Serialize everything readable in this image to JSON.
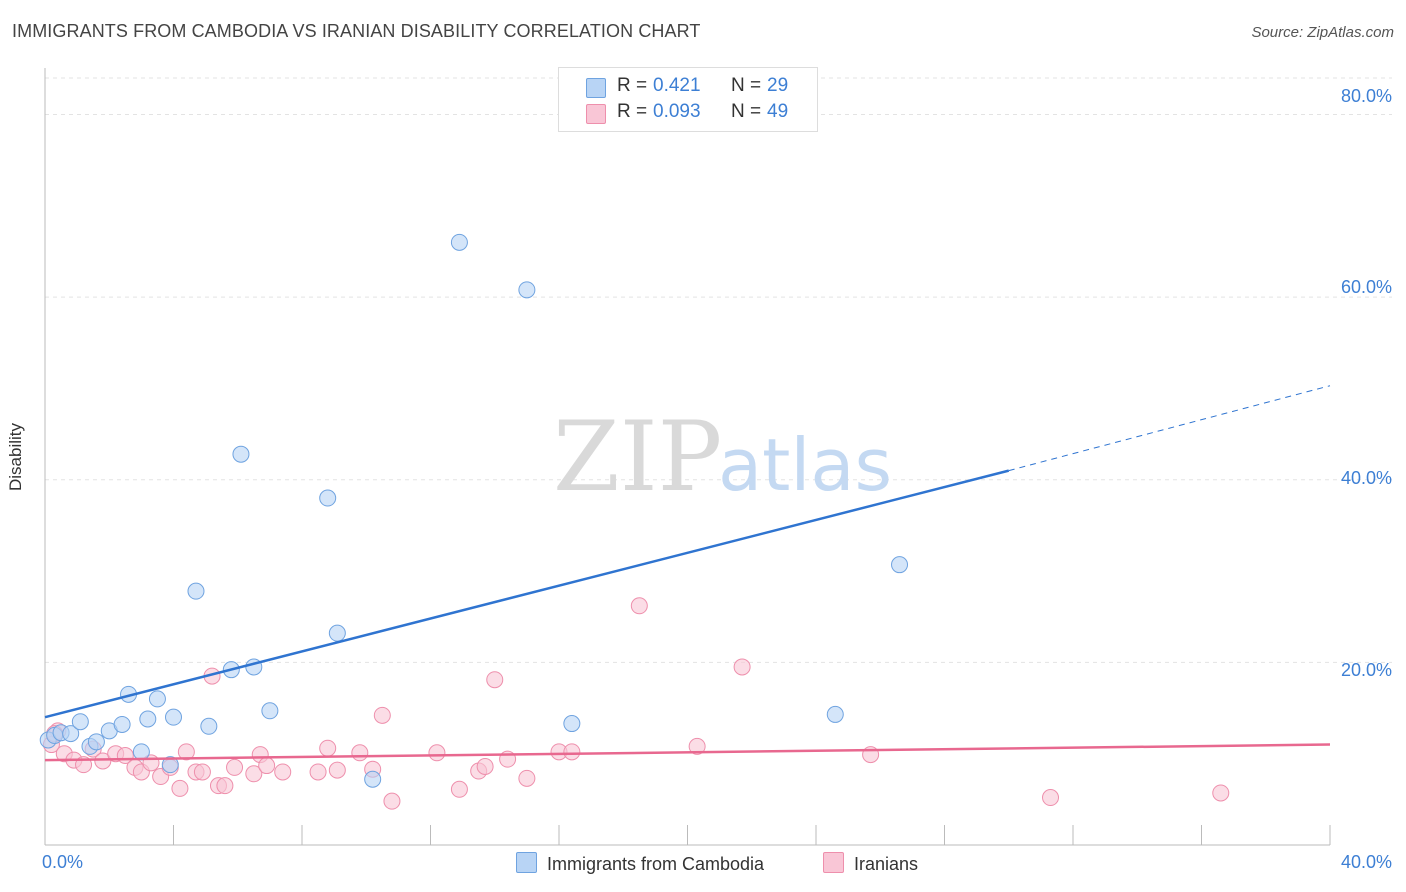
{
  "header": {
    "title": "IMMIGRANTS FROM CAMBODIA VS IRANIAN DISABILITY CORRELATION CHART",
    "source": "Source: ZipAtlas.com"
  },
  "watermark": {
    "zip": "ZIP",
    "atlas": "atlas"
  },
  "legend_top": {
    "rows": [
      {
        "r_label": "R =",
        "r_value": "0.421",
        "n_label": "N =",
        "n_value": "29"
      },
      {
        "r_label": "R =",
        "r_value": "0.093",
        "n_label": "N =",
        "n_value": "49"
      }
    ]
  },
  "colors": {
    "series1_fill": "#b8d4f5",
    "series1_stroke": "#6fa3e0",
    "series1_line": "#2f74d0",
    "series2_fill": "#f9c6d6",
    "series2_stroke": "#ee8fac",
    "series2_line": "#e8688f",
    "tick_text": "#3d7fd4",
    "grid": "#e3e3e3"
  },
  "chart_data": {
    "type": "scatter",
    "title": "IMMIGRANTS FROM CAMBODIA VS IRANIAN DISABILITY CORRELATION CHART",
    "xlabel": "",
    "ylabel": "Disability",
    "xlim": [
      0,
      40
    ],
    "ylim": [
      0,
      84
    ],
    "x_tick_labels": [
      "0.0%",
      "40.0%"
    ],
    "y_ticks": [
      20,
      40,
      60,
      80
    ],
    "y_tick_labels": [
      "20.0%",
      "40.0%",
      "60.0%",
      "80.0%"
    ],
    "grid": true,
    "legend_position": "bottom",
    "series": [
      {
        "name": "Immigrants from Cambodia",
        "r": 0.421,
        "n": 29,
        "trend": {
          "x_start": 0,
          "y_start": 14.0,
          "x_solid_end": 30.0,
          "y_solid_end": 41.0,
          "x_end": 40,
          "y_end": 50.3
        },
        "points": [
          [
            0.1,
            11.5
          ],
          [
            0.3,
            12.0
          ],
          [
            0.5,
            12.3
          ],
          [
            0.8,
            12.2
          ],
          [
            1.1,
            13.5
          ],
          [
            1.4,
            10.8
          ],
          [
            1.6,
            11.3
          ],
          [
            2.0,
            12.5
          ],
          [
            2.4,
            13.2
          ],
          [
            2.6,
            16.5
          ],
          [
            3.0,
            10.2
          ],
          [
            3.2,
            13.8
          ],
          [
            3.5,
            16.0
          ],
          [
            3.9,
            8.8
          ],
          [
            4.0,
            14.0
          ],
          [
            4.7,
            27.8
          ],
          [
            5.1,
            13.0
          ],
          [
            5.8,
            19.2
          ],
          [
            6.1,
            42.8
          ],
          [
            6.5,
            19.5
          ],
          [
            7.0,
            14.7
          ],
          [
            8.8,
            38.0
          ],
          [
            9.1,
            23.2
          ],
          [
            10.2,
            7.2
          ],
          [
            12.9,
            66.0
          ],
          [
            15.0,
            60.8
          ],
          [
            16.4,
            13.3
          ],
          [
            24.6,
            14.3
          ],
          [
            26.6,
            30.7
          ]
        ]
      },
      {
        "name": "Iranians",
        "r": 0.093,
        "n": 49,
        "trend": {
          "x_start": 0,
          "y_start": 9.3,
          "x_end": 40,
          "y_end": 11.0
        },
        "points": [
          [
            0.2,
            11.0
          ],
          [
            0.4,
            12.5
          ],
          [
            0.6,
            10.0
          ],
          [
            0.9,
            9.3
          ],
          [
            1.2,
            8.8
          ],
          [
            1.5,
            10.5
          ],
          [
            1.8,
            9.2
          ],
          [
            2.2,
            10.0
          ],
          [
            2.5,
            9.8
          ],
          [
            2.8,
            8.5
          ],
          [
            3.0,
            8.0
          ],
          [
            3.3,
            9.0
          ],
          [
            3.6,
            7.5
          ],
          [
            3.9,
            8.5
          ],
          [
            4.2,
            6.2
          ],
          [
            4.4,
            10.2
          ],
          [
            4.7,
            8.0
          ],
          [
            4.9,
            8.0
          ],
          [
            5.2,
            18.5
          ],
          [
            5.4,
            6.5
          ],
          [
            5.6,
            6.5
          ],
          [
            5.9,
            8.5
          ],
          [
            6.5,
            7.8
          ],
          [
            6.7,
            9.9
          ],
          [
            6.9,
            8.7
          ],
          [
            7.4,
            8.0
          ],
          [
            8.5,
            8.0
          ],
          [
            8.8,
            10.6
          ],
          [
            9.1,
            8.2
          ],
          [
            9.8,
            10.1
          ],
          [
            10.2,
            8.3
          ],
          [
            10.5,
            14.2
          ],
          [
            10.8,
            4.8
          ],
          [
            12.2,
            10.1
          ],
          [
            12.9,
            6.1
          ],
          [
            13.5,
            8.1
          ],
          [
            13.7,
            8.6
          ],
          [
            14.0,
            18.1
          ],
          [
            14.4,
            9.4
          ],
          [
            15.0,
            7.3
          ],
          [
            16.0,
            10.2
          ],
          [
            16.4,
            10.2
          ],
          [
            18.5,
            26.2
          ],
          [
            20.3,
            10.8
          ],
          [
            21.7,
            19.5
          ],
          [
            25.7,
            9.9
          ],
          [
            31.3,
            5.2
          ],
          [
            36.6,
            5.7
          ],
          [
            0.3,
            12.2
          ]
        ]
      }
    ]
  }
}
